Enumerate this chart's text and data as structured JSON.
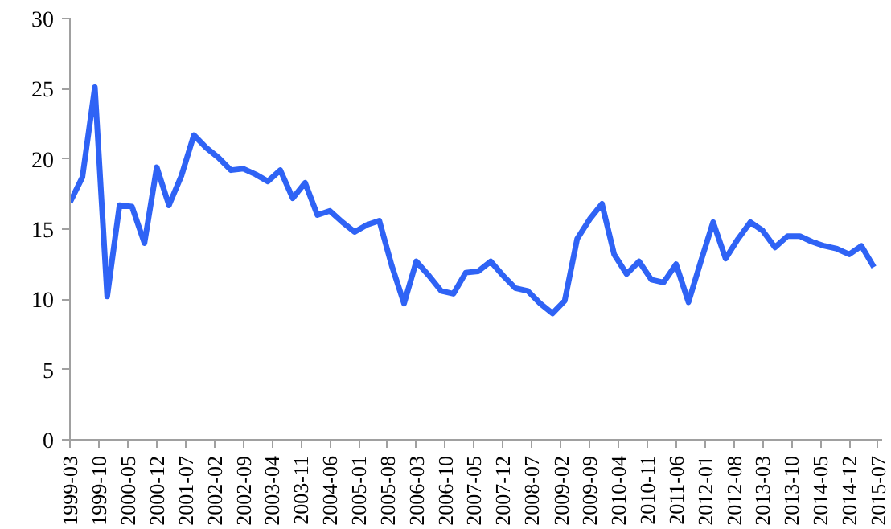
{
  "chart_data": {
    "type": "line",
    "x": [
      "1999-03",
      "1999-06",
      "1999-09",
      "1999-12",
      "2000-03",
      "2000-06",
      "2000-09",
      "2000-12",
      "2001-03",
      "2001-06",
      "2001-09",
      "2001-12",
      "2002-03",
      "2002-06",
      "2002-09",
      "2002-12",
      "2003-03",
      "2003-06",
      "2003-09",
      "2003-12",
      "2004-03",
      "2004-06",
      "2004-09",
      "2004-12",
      "2005-03",
      "2005-06",
      "2005-09",
      "2005-12",
      "2006-03",
      "2006-06",
      "2006-09",
      "2006-12",
      "2007-03",
      "2007-06",
      "2007-09",
      "2007-12",
      "2008-03",
      "2008-06",
      "2008-09",
      "2008-12",
      "2009-03",
      "2009-06",
      "2009-09",
      "2009-12",
      "2010-03",
      "2010-06",
      "2010-09",
      "2010-12",
      "2011-03",
      "2011-06",
      "2011-09",
      "2011-12",
      "2012-03",
      "2012-06",
      "2012-09",
      "2012-12",
      "2013-03",
      "2013-06",
      "2013-09",
      "2013-12",
      "2014-03",
      "2014-06",
      "2014-09",
      "2014-12",
      "2015-03",
      "2015-06"
    ],
    "series": [
      {
        "color": "#2f63f5",
        "values": [
          16.9,
          18.7,
          25.1,
          10.2,
          16.7,
          16.6,
          14.0,
          19.4,
          16.7,
          18.8,
          21.7,
          20.8,
          20.1,
          19.2,
          19.3,
          18.9,
          18.4,
          19.2,
          17.2,
          18.3,
          16.0,
          16.3,
          15.5,
          14.8,
          15.3,
          15.6,
          12.4,
          9.7,
          12.7,
          11.7,
          10.6,
          10.4,
          11.9,
          12.0,
          12.7,
          11.7,
          10.8,
          10.6,
          9.7,
          9.0,
          9.9,
          14.3,
          15.7,
          16.8,
          13.2,
          11.8,
          12.7,
          11.4,
          11.2,
          12.5,
          9.8,
          12.7,
          15.5,
          12.9,
          14.3,
          15.5,
          14.9,
          13.7,
          14.5,
          14.5,
          14.1,
          13.8,
          13.6,
          13.2,
          13.8,
          12.3
        ]
      }
    ],
    "xlim": [
      "1999-03",
      "2015-08"
    ],
    "xticks": [
      "1999-03",
      "1999-10",
      "2000-05",
      "2000-12",
      "2001-07",
      "2002-02",
      "2002-09",
      "2003-04",
      "2003-11",
      "2004-06",
      "2005-01",
      "2005-08",
      "2006-03",
      "2006-10",
      "2007-05",
      "2007-12",
      "2008-07",
      "2009-02",
      "2009-09",
      "2010-04",
      "2010-11",
      "2011-06",
      "2012-01",
      "2012-08",
      "2013-03",
      "2013-10",
      "2014-05",
      "2014-12",
      "2015-07"
    ],
    "ylim": [
      0,
      30
    ],
    "yticks": [
      0,
      5,
      10,
      15,
      20,
      25,
      30
    ],
    "grid": false,
    "marker": "none",
    "line_style": "solid"
  }
}
